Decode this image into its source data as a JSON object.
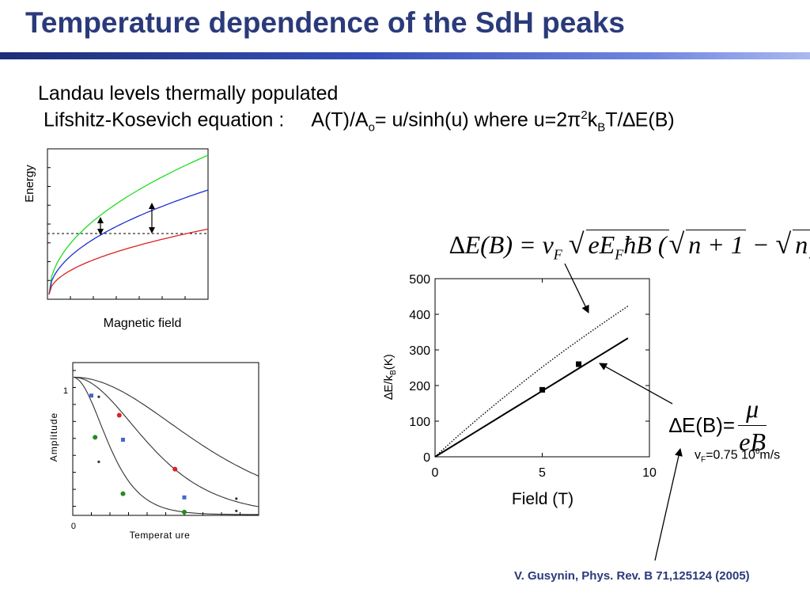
{
  "slide": {
    "title": "Temperature dependence of the SdH peaks",
    "line1": "Landau levels thermally populated",
    "line2": {
      "label": "Lifshitz-Kosevich equation :",
      "eq_a": "A(T)/A",
      "eq_sub_o": "o",
      "eq_eq": "=",
      "eq_b": " u/sinh(u) where u=2π",
      "eq_sup_2": "2",
      "eq_k": "k",
      "eq_sub_b": "B",
      "eq_c": "T/∆E(B)"
    },
    "formula_delta_e": {
      "lhs": "∆E(B) = v",
      "sub_f": "F",
      "mid": "eE",
      "sub_f2": "F",
      "hbar_b": "ħB (",
      "n_plus_1": "n + 1",
      "minus": " − ",
      "n": "n",
      "close": ")"
    },
    "formula_mu": {
      "lhs": "∆E(B)=",
      "numerator": "μ",
      "denominator": "eB"
    },
    "vf": {
      "text": "v",
      "sub": "F",
      "mid": "=0.75 10",
      "sup": "6",
      "unit": "m/s"
    },
    "citation": "V. Gusynin, Phys. Rev. B 71,125124 (2005)"
  },
  "chart_data": [
    {
      "type": "line",
      "title": "",
      "xlabel": "Magnetic field",
      "ylabel": "Energy",
      "series": [
        {
          "color": "#22dd22",
          "shape": "sqrt",
          "level": 1.0
        },
        {
          "color": "#1f2fd0",
          "shape": "sqrt",
          "level": 0.75
        },
        {
          "color": "#dd2222",
          "shape": "sqrt",
          "level": 0.47
        }
      ],
      "annotations": [
        "dashed horizontal line (Fermi energy)",
        "double-headed arrows between levels"
      ]
    },
    {
      "type": "scatter",
      "title": "",
      "xlabel": "Temperat ure",
      "ylabel": "Amplitude",
      "yticks": [
        "1",
        "0"
      ],
      "series": [
        {
          "color": "#228b22",
          "points": [
            [
              0.12,
              0.63
            ],
            [
              0.27,
              0.17
            ],
            [
              0.6,
              0.02
            ]
          ]
        },
        {
          "color": "#4466cc",
          "points": [
            [
              0.1,
              0.97
            ],
            [
              0.27,
              0.61
            ],
            [
              0.6,
              0.14
            ]
          ]
        },
        {
          "color": "#dd2222",
          "points": [
            [
              0.25,
              0.81
            ],
            [
              0.55,
              0.37
            ]
          ]
        },
        {
          "color": "#333333",
          "points": [
            [
              0.14,
              0.96
            ],
            [
              0.14,
              0.43
            ],
            [
              0.88,
              0.13
            ],
            [
              0.88,
              0.03
            ]
          ]
        }
      ]
    },
    {
      "type": "line",
      "title": "",
      "xlabel": "Field (T)",
      "ylabel": "∆E/k",
      "ylabel_sub": "B",
      "ylabel_tail": "(K)",
      "xlim": [
        0,
        10
      ],
      "ylim": [
        0,
        500
      ],
      "xticks": [
        "0",
        "5",
        "10"
      ],
      "yticks": [
        "0",
        "100",
        "200",
        "300",
        "400",
        "500"
      ],
      "series": [
        {
          "style": "dotted",
          "x": [
            0,
            1,
            2,
            3,
            4,
            5,
            6,
            7,
            8,
            9
          ],
          "y": [
            0,
            55,
            107,
            157,
            205,
            252,
            297,
            340,
            382,
            423
          ]
        },
        {
          "style": "solid",
          "x": [
            0,
            1,
            2,
            3,
            4,
            5,
            6,
            7,
            8,
            9
          ],
          "y": [
            0,
            37,
            74,
            111,
            148,
            185,
            222,
            259,
            296,
            333
          ]
        },
        {
          "style": "markers",
          "x": [
            5.0,
            6.7
          ],
          "y": [
            188,
            260
          ]
        }
      ]
    }
  ]
}
